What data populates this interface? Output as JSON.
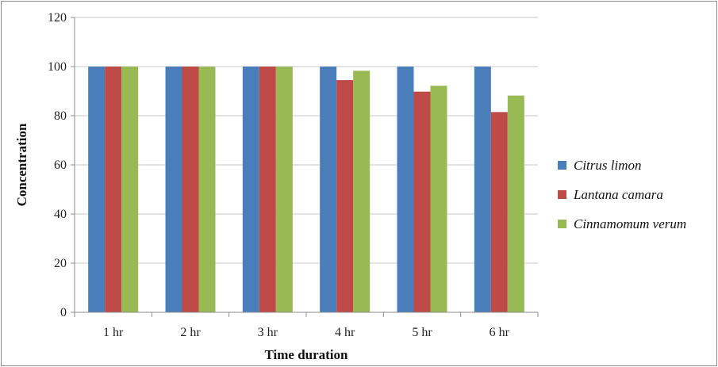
{
  "chart_data": {
    "type": "bar",
    "categories": [
      "1 hr",
      "2 hr",
      "3 hr",
      "4 hr",
      "5 hr",
      "6 hr"
    ],
    "series": [
      {
        "name": "Citrus limon",
        "color": "#4a7ebb",
        "values": [
          100,
          100,
          100,
          100,
          100,
          100
        ]
      },
      {
        "name": "Lantana camara",
        "color": "#be4b48",
        "values": [
          100,
          100,
          100,
          94.5,
          89.8,
          81.5
        ]
      },
      {
        "name": "Cinnamomum verum",
        "color": "#98b954",
        "values": [
          100,
          100,
          100,
          98.3,
          92.2,
          88.2
        ]
      }
    ],
    "xlabel": "Time duration",
    "ylabel": "Concentration",
    "ylim": [
      0,
      120
    ],
    "yticks": [
      0,
      20,
      40,
      60,
      80,
      100,
      120
    ],
    "grid": true,
    "legend_position": "right"
  }
}
